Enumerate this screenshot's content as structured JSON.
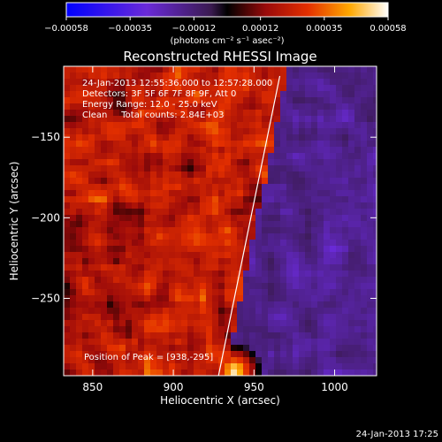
{
  "chart_data": {
    "type": "heatmap",
    "title": "Reconstructed RHESSI Image",
    "xlabel": "Heliocentric X (arcsec)",
    "ylabel": "Heliocentric Y (arcsec)",
    "xlim": [
      832,
      1026
    ],
    "ylim": [
      -298,
      -106
    ],
    "x_ticks": [
      850,
      900,
      950,
      1000
    ],
    "x_tick_labels": [
      "850",
      "900",
      "950",
      "1000"
    ],
    "y_ticks": [
      -150,
      -200,
      -250
    ],
    "y_tick_labels": [
      "−150",
      "−200",
      "−250"
    ],
    "colorbar": {
      "range": [
        -0.00058,
        0.00058
      ],
      "ticks": [
        -0.00058,
        -0.00035,
        -0.00012,
        0.00012,
        0.00035,
        0.00058
      ],
      "tick_labels": [
        "−0.00058",
        "−0.00035",
        "−0.00012",
        "0.00012",
        "0.00035",
        "0.00058"
      ],
      "unit_label": "(photons cm⁻² s⁻¹ asec⁻²)"
    },
    "annotations": [
      "24-Jan-2013 12:55:36.000 to 12:57:28.000",
      "Detectors: 3F 5F 6F 7F 8F 9F, Att 0",
      "Energy Range: 12.0 - 25.0 keV",
      "Clean     Total counts: 2.84E+03"
    ],
    "peak_label": "Position of Peak = [938,-295]",
    "peak": [
      938,
      -295
    ],
    "limb_line": [
      [
        928,
        -298
      ],
      [
        966,
        -112
      ]
    ],
    "timestamp": "24-Jan-2013 17:25"
  }
}
